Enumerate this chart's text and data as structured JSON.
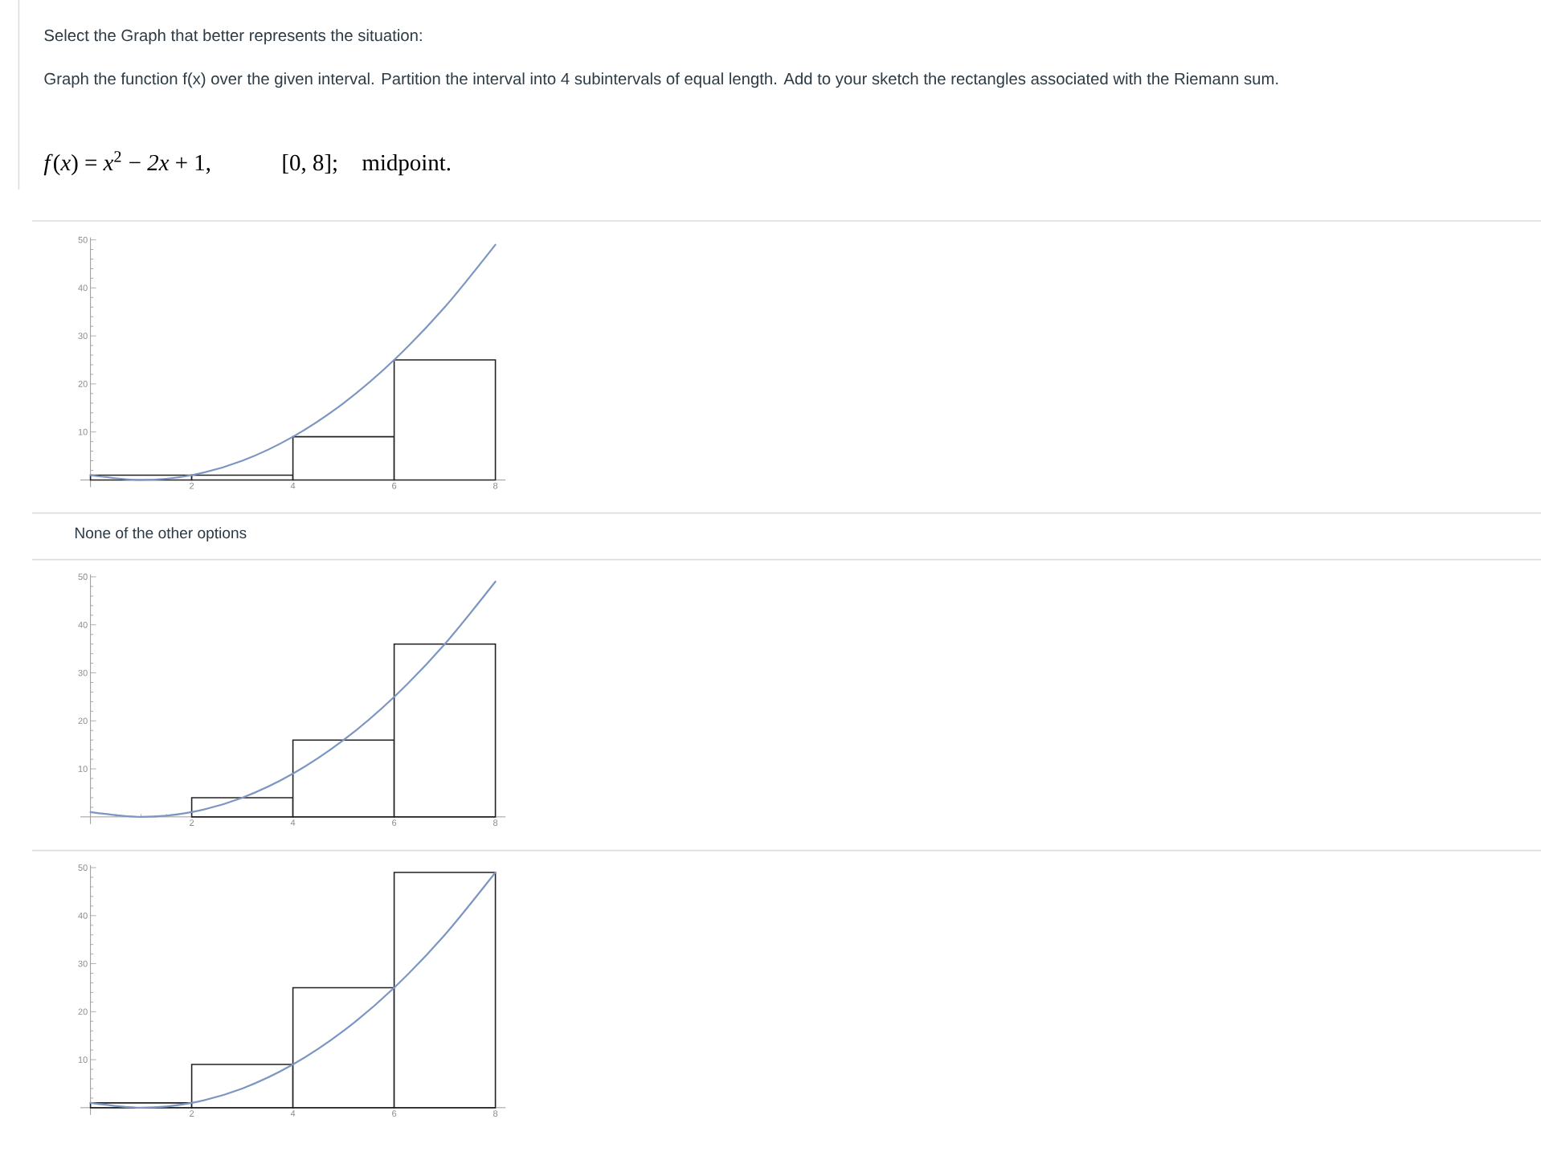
{
  "chart_data": [
    {
      "type": "bar",
      "title": "Select the Graph that better represents the situation:",
      "subtitle": "Graph the function f(x) over the given interval. Partition the interval into 4 subintervals of equal length. Add to your sketch the rectangles associated with the Riemann sum.",
      "annotations": [
        "*f*(*x*) = *x*$^{2}$ − *2x* + 1,",
        "[0, 8];",
        "midpoint."
      ],
      "series": [
        {
          "x": [
            1,
            3,
            5,
            7
          ],
          "values": [
            1,
            1,
            9,
            25
          ],
          "color": "#ffffff"
        },
        {
          "type": "line",
          "x": [
            0,
            1,
            2,
            3,
            4,
            5,
            6,
            7,
            8
          ],
          "values": [
            1,
            0,
            1,
            4,
            9,
            16,
            25,
            36,
            49
          ],
          "color": "#7b96c2"
        }
      ],
      "xlim": [
        -0.2,
        8.2
      ],
      "ylim": [
        -1.5,
        50.5
      ],
      "xticks": [
        2,
        4,
        6,
        8
      ],
      "yticks": [
        10,
        20,
        30,
        40,
        50
      ]
    },
    {
      "type": "bar",
      "annotations": [
        "None of the other options"
      ],
      "series": [
        {
          "x": [
            3,
            5,
            7
          ],
          "values": [
            4,
            16,
            36
          ],
          "color": "#ffffff"
        },
        {
          "type": "line",
          "x": [
            0,
            1,
            2,
            3,
            4,
            5,
            6,
            7,
            8
          ],
          "values": [
            1,
            0,
            1,
            4,
            9,
            16,
            25,
            36,
            49
          ],
          "color": "#7b96c2"
        }
      ],
      "xlim": [
        -0.2,
        8.2
      ],
      "ylim": [
        -1.5,
        50.5
      ],
      "xticks": [
        2,
        4,
        6,
        8
      ],
      "yticks": [
        10,
        20,
        30,
        40,
        50
      ]
    },
    {
      "type": "bar",
      "series": [
        {
          "x": [
            1,
            3,
            5,
            7
          ],
          "values": [
            1,
            9,
            25,
            49
          ],
          "color": "#ffffff"
        },
        {
          "type": "line",
          "x": [
            0,
            1,
            2,
            3,
            4,
            5,
            6,
            7,
            8
          ],
          "values": [
            1,
            0,
            1,
            4,
            9,
            16,
            25,
            36,
            49
          ],
          "color": "#7b96c2"
        }
      ],
      "xlim": [
        -0.2,
        8.2
      ],
      "ylim": [
        -1.5,
        50.5
      ],
      "xticks": [
        2,
        4,
        6,
        8
      ],
      "yticks": [
        10,
        20,
        30,
        40,
        50
      ]
    }
  ]
}
